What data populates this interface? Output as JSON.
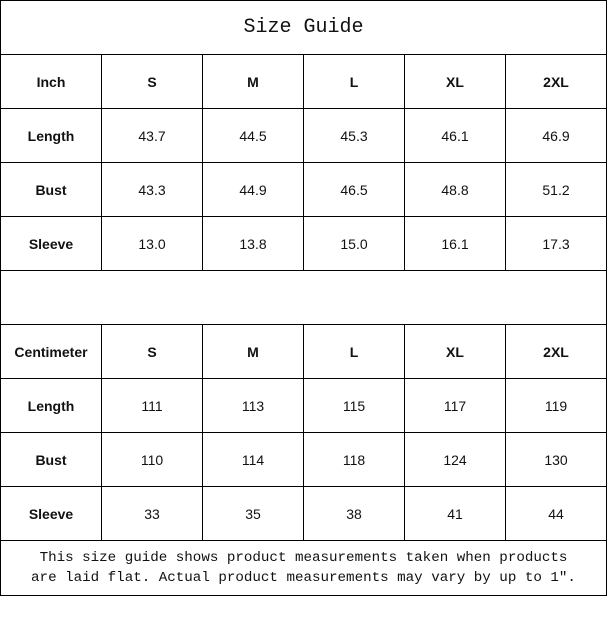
{
  "title": "Size Guide",
  "inch": {
    "header": [
      "Inch",
      "S",
      "M",
      "L",
      "XL",
      "2XL"
    ],
    "rows": [
      {
        "label": "Length",
        "values": [
          "43.7",
          "44.5",
          "45.3",
          "46.1",
          "46.9"
        ]
      },
      {
        "label": "Bust",
        "values": [
          "43.3",
          "44.9",
          "46.5",
          "48.8",
          "51.2"
        ]
      },
      {
        "label": "Sleeve",
        "values": [
          "13.0",
          "13.8",
          "15.0",
          "16.1",
          "17.3"
        ]
      }
    ]
  },
  "centimeter": {
    "header": [
      "Centimeter",
      "S",
      "M",
      "L",
      "XL",
      "2XL"
    ],
    "rows": [
      {
        "label": "Length",
        "values": [
          "111",
          "113",
          "115",
          "117",
          "119"
        ]
      },
      {
        "label": "Bust",
        "values": [
          "110",
          "114",
          "118",
          "124",
          "130"
        ]
      },
      {
        "label": "Sleeve",
        "values": [
          "33",
          "35",
          "38",
          "41",
          "44"
        ]
      }
    ]
  },
  "note": {
    "line1": "This size guide shows product measurements taken when products",
    "line2": "are laid flat. Actual product measurements may vary by up to 1″."
  }
}
